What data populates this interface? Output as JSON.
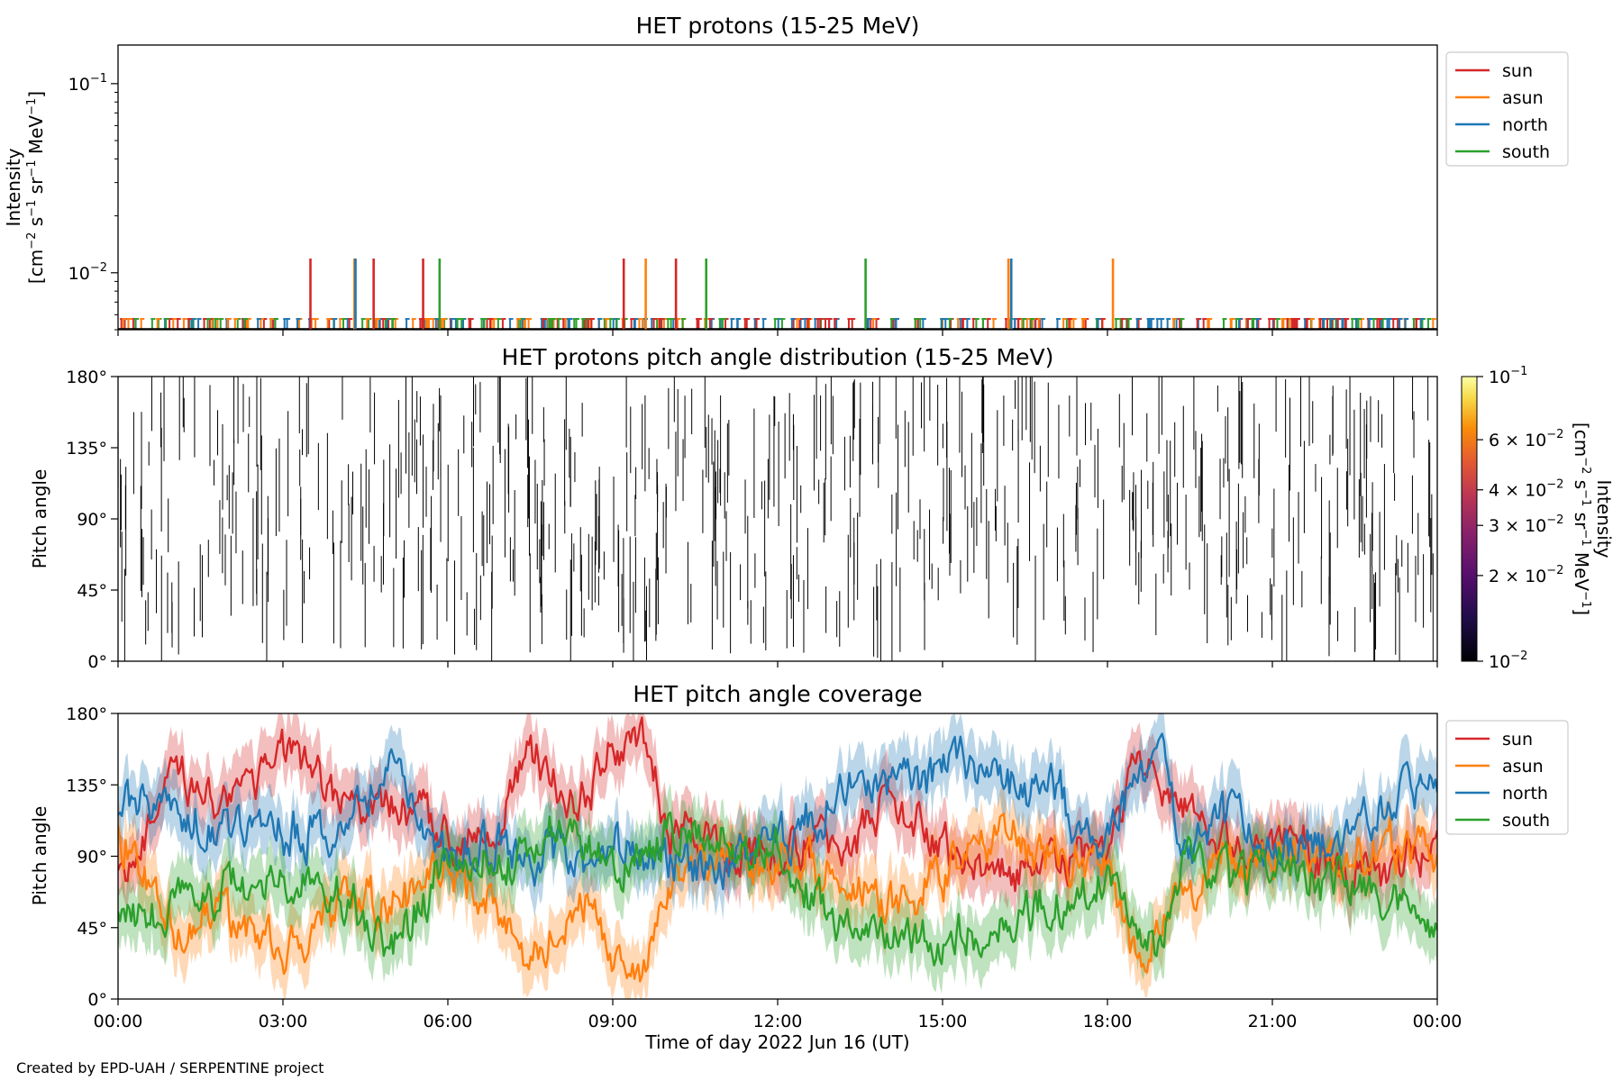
{
  "figure": {
    "credit": "Created by EPD-UAH / SERPENTINE project",
    "xlabel": "Time of day 2022 Jun 16 (UT)",
    "xticks": [
      "00:00",
      "03:00",
      "06:00",
      "09:00",
      "12:00",
      "15:00",
      "18:00",
      "21:00",
      "00:00"
    ]
  },
  "colors": {
    "sun": "#d62728",
    "asun": "#ff7f0e",
    "north": "#1f77b4",
    "south": "#2ca02c"
  },
  "chart_data": [
    {
      "type": "line",
      "title": "HET protons (15-25 MeV)",
      "ylabel_line1": "Intensity",
      "ylabel_units": {
        "open": "[cm",
        "e1": "−2",
        "mid1": " s",
        "e2": "−1",
        "mid2": " sr",
        "e3": "−1",
        "mid3": " MeV",
        "e4": "−1",
        "close": "]"
      },
      "yscale": "log",
      "ylim": [
        0.005,
        0.16
      ],
      "yticks": [
        {
          "value": 0.01,
          "base": "10",
          "exp": "−2"
        },
        {
          "value": 0.1,
          "base": "10",
          "exp": "−1"
        }
      ],
      "xlim_hours": [
        0,
        24
      ],
      "baseline_value": 0.0057,
      "legend": {
        "placement": "upper-right-outside",
        "entries": [
          "sun",
          "asun",
          "north",
          "south"
        ]
      },
      "series": [
        {
          "name": "sun",
          "spikes_hours": [
            3.5,
            4.65,
            5.55,
            9.2,
            10.15,
            16.2
          ],
          "spike_value": 0.0119
        },
        {
          "name": "asun",
          "spikes_hours": [
            4.3,
            9.6,
            16.2,
            18.1
          ],
          "spike_value": 0.0119
        },
        {
          "name": "north",
          "spikes_hours": [
            4.32,
            16.25
          ],
          "spike_value": 0.0119
        },
        {
          "name": "south",
          "spikes_hours": [
            5.85,
            10.7,
            13.6
          ],
          "spike_value": 0.0119
        }
      ]
    },
    {
      "type": "heatmap",
      "title": "HET protons pitch angle distribution (15-25 MeV)",
      "ylabel": "Pitch angle",
      "ylim": [
        0,
        180
      ],
      "yticks": [
        "0°",
        "45°",
        "90°",
        "135°",
        "180°"
      ],
      "xlim_hours": [
        0,
        24
      ],
      "colorbar": {
        "label_line1": "Intensity",
        "label_units": {
          "open": "[cm",
          "e1": "−2",
          "mid1": " s",
          "e2": "−1",
          "mid2": " sr",
          "e3": "−1",
          "mid3": " MeV",
          "e4": "−1",
          "close": "]"
        },
        "scale": "log",
        "range": [
          0.01,
          0.1
        ],
        "cmap": "inferno",
        "ticks": [
          {
            "value": 0.01,
            "text": "10",
            "exp": "−2"
          },
          {
            "value": 0.02,
            "text": "2 × 10",
            "exp": "−2"
          },
          {
            "value": 0.03,
            "text": "3 × 10",
            "exp": "−2"
          },
          {
            "value": 0.04,
            "text": "4 × 10",
            "exp": "−2"
          },
          {
            "value": 0.06,
            "text": "6 × 10",
            "exp": "−2"
          },
          {
            "value": 0.1,
            "text": "10",
            "exp": "−1"
          }
        ]
      },
      "note": "sparse single-count pixels at ~0.01 intensity (black) scattered across all pitch angles"
    },
    {
      "type": "area",
      "title": "HET pitch angle coverage",
      "ylabel": "Pitch angle",
      "ylim": [
        0,
        180
      ],
      "yticks": [
        "0°",
        "45°",
        "90°",
        "135°",
        "180°"
      ],
      "xlim_hours": [
        0,
        24
      ],
      "legend": {
        "placement": "upper-right-outside",
        "entries": [
          "sun",
          "asun",
          "north",
          "south"
        ]
      },
      "x_hours": [
        0,
        1,
        2,
        3,
        4,
        5,
        6,
        7,
        7.5,
        8,
        8.5,
        9,
        9.5,
        10,
        11,
        12,
        13,
        14,
        15,
        16,
        17,
        18,
        18.5,
        19,
        19.5,
        20,
        21,
        22,
        23,
        24
      ],
      "series": [
        {
          "name": "sun",
          "values": [
            75,
            135,
            128,
            160,
            125,
            120,
            95,
            115,
            165,
            130,
            120,
            155,
            160,
            100,
            95,
            90,
            95,
            120,
            95,
            80,
            85,
            95,
            150,
            130,
            110,
            95,
            95,
            90,
            85,
            95
          ],
          "band_halfwidth": 18
        },
        {
          "name": "asun",
          "values": [
            105,
            45,
            55,
            30,
            55,
            60,
            85,
            60,
            15,
            50,
            60,
            25,
            15,
            80,
            85,
            90,
            85,
            60,
            80,
            100,
            95,
            85,
            30,
            50,
            70,
            85,
            85,
            90,
            95,
            85
          ],
          "band_halfwidth": 18
        },
        {
          "name": "north",
          "values": [
            125,
            120,
            110,
            100,
            115,
            150,
            85,
            100,
            75,
            95,
            80,
            100,
            85,
            85,
            85,
            95,
            130,
            140,
            150,
            140,
            125,
            100,
            130,
            140,
            90,
            110,
            95,
            95,
            120,
            140
          ],
          "band_halfwidth": 18
        },
        {
          "name": "south",
          "values": [
            50,
            60,
            70,
            80,
            65,
            35,
            95,
            80,
            85,
            110,
            100,
            75,
            80,
            95,
            95,
            85,
            50,
            40,
            30,
            45,
            55,
            80,
            50,
            40,
            90,
            70,
            85,
            80,
            60,
            40
          ],
          "band_halfwidth": 18
        }
      ]
    }
  ]
}
